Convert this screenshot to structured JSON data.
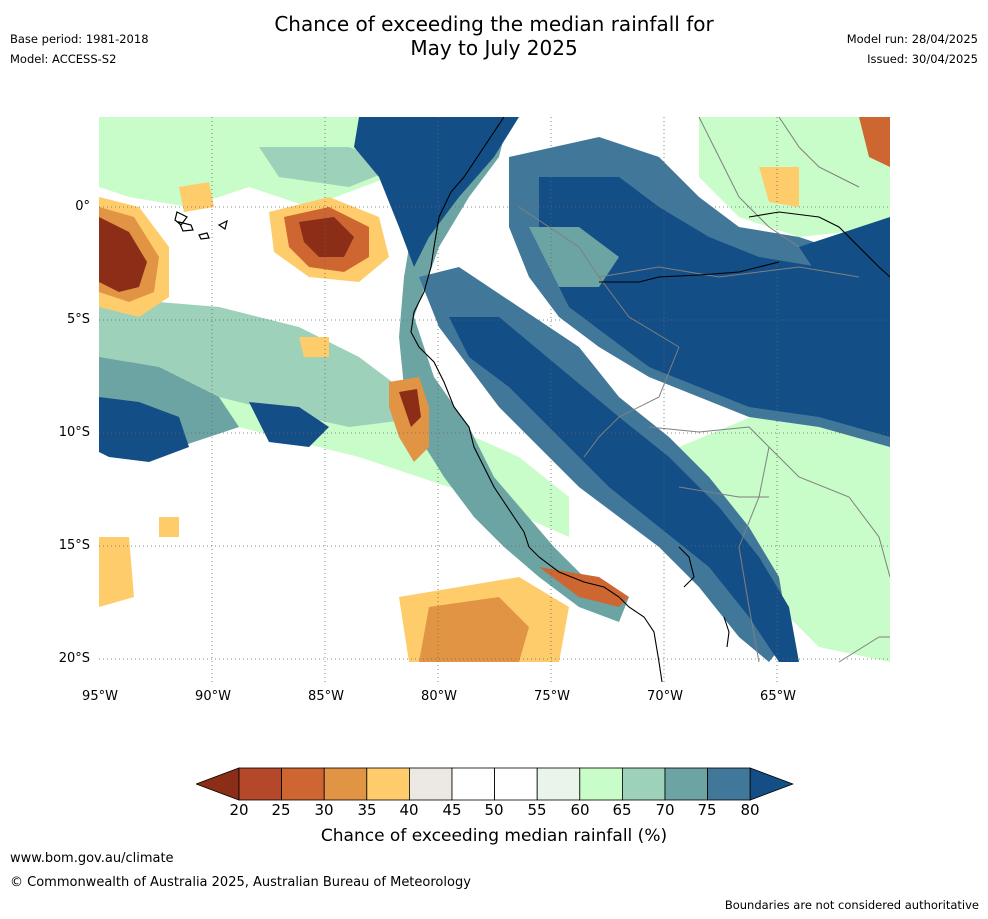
{
  "header": {
    "title_line1": "Chance of exceeding the median rainfall for",
    "title_line2": "May to July 2025",
    "base_period": "Base period: 1981-2018",
    "model": "Model: ACCESS-S2",
    "model_run": "Model run: 28/04/2025",
    "issued": "Issued: 30/04/2025"
  },
  "map": {
    "lat_ticks": [
      "0°",
      "5°S",
      "10°S",
      "15°S",
      "20°S"
    ],
    "lon_ticks": [
      "95°W",
      "90°W",
      "85°W",
      "80°W",
      "75°W",
      "70°W",
      "65°W"
    ],
    "ocean_color": "#ffffff",
    "coastline_color": "#000000",
    "border_color": "#808080"
  },
  "colorbar": {
    "title": "Chance of exceeding median rainfall (%)",
    "labels": [
      "20",
      "25",
      "30",
      "35",
      "40",
      "45",
      "50",
      "55",
      "60",
      "65",
      "70",
      "75",
      "80"
    ],
    "colors": [
      "#8c2d17",
      "#b5472a",
      "#ce6632",
      "#e09444",
      "#fecc6a",
      "#ece9e4",
      "#ffffff",
      "#ffffff",
      "#e8f5e8",
      "#c8fcc8",
      "#9dd1b9",
      "#6ca4a4",
      "#41789a",
      "#134e87"
    ]
  },
  "footer": {
    "url": "www.bom.gov.au/climate",
    "copyright": "© Commonwealth of Australia 2025, Australian Bureau of Meteorology",
    "note": "Boundaries are not considered authoritative"
  }
}
